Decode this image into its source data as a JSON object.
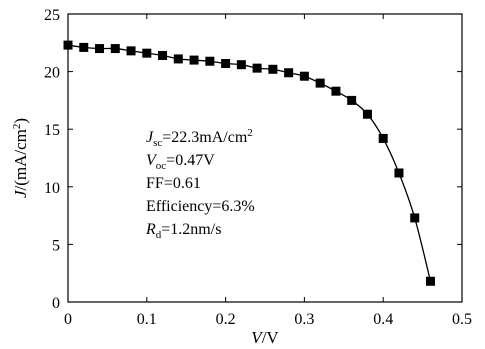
{
  "chart_data": {
    "type": "line",
    "marker": "square",
    "x": [
      0.0,
      0.02,
      0.04,
      0.06,
      0.08,
      0.1,
      0.12,
      0.14,
      0.16,
      0.18,
      0.2,
      0.22,
      0.24,
      0.26,
      0.28,
      0.3,
      0.32,
      0.34,
      0.36,
      0.38,
      0.4,
      0.42,
      0.44,
      0.46
    ],
    "y": [
      22.3,
      22.1,
      22.0,
      22.0,
      21.8,
      21.6,
      21.4,
      21.1,
      21.0,
      20.9,
      20.7,
      20.6,
      20.3,
      20.2,
      19.9,
      19.6,
      19.0,
      18.3,
      17.5,
      16.3,
      14.2,
      11.2,
      7.3,
      1.8
    ],
    "xlabel": {
      "italic": "V",
      "rest": "/V"
    },
    "ylabel": {
      "italic": "J",
      "rest": "/(mA/cm",
      "sup": "2",
      "close": ")"
    },
    "xlim": [
      0,
      0.5
    ],
    "ylim": [
      0,
      25
    ],
    "xticks": [
      "0",
      "0.1",
      "0.2",
      "0.3",
      "0.4",
      "0.5"
    ],
    "yticks": [
      "0",
      "5",
      "10",
      "15",
      "20",
      "25"
    ],
    "grid": false,
    "legend": "none",
    "line_color": "#000000",
    "annotations": [
      {
        "main": "J",
        "sub": "sc",
        "rest": "=22.3mA/cm",
        "sup": "2"
      },
      {
        "main": "V",
        "sub": "oc",
        "rest": "=0.47V"
      },
      {
        "main": "",
        "sub": "",
        "rest": "FF=0.61"
      },
      {
        "main": "",
        "sub": "",
        "rest": "Efficiency=6.3%"
      },
      {
        "main": "R",
        "sub": "d",
        "rest": "=1.2nm/s"
      }
    ]
  }
}
